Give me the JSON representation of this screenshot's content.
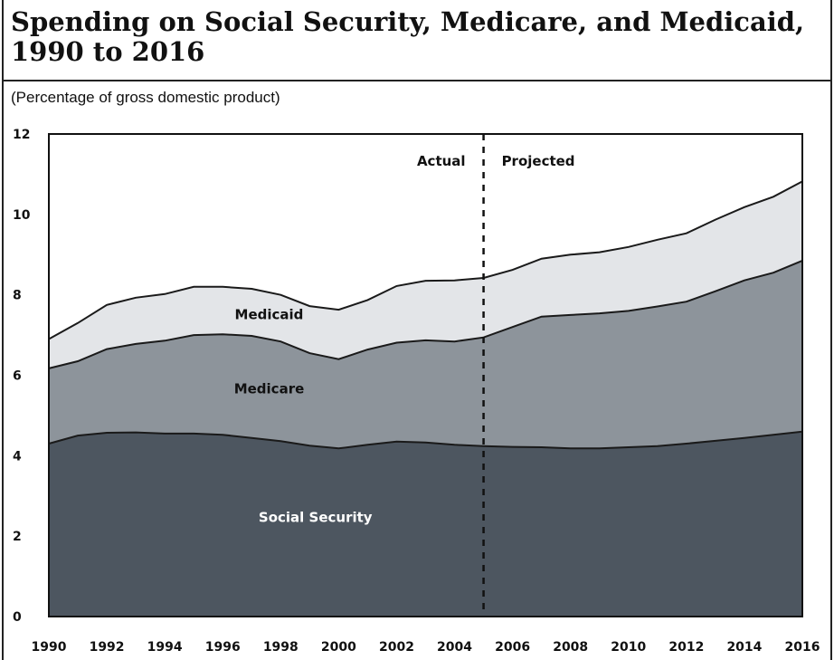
{
  "title": "Spending on Social Security, Medicare, and Medicaid, 1990 to 2016",
  "subtitle": "(Percentage of gross domestic product)",
  "chart_data": {
    "type": "area",
    "stacked": true,
    "title": "Spending on Social Security, Medicare, and Medicaid, 1990 to 2016",
    "ylabel": "(Percentage of gross domestic product)",
    "xlabel": "",
    "x": [
      1990,
      1991,
      1992,
      1993,
      1994,
      1995,
      1996,
      1997,
      1998,
      1999,
      2000,
      2001,
      2002,
      2003,
      2004,
      2005,
      2006,
      2007,
      2008,
      2009,
      2010,
      2011,
      2012,
      2013,
      2014,
      2015,
      2016
    ],
    "x_ticks": [
      "1990",
      "1992",
      "1994",
      "1996",
      "1998",
      "2000",
      "2002",
      "2004",
      "2006",
      "2008",
      "2010",
      "2012",
      "2014",
      "2016"
    ],
    "y_ticks": [
      "0",
      "2",
      "4",
      "6",
      "8",
      "10",
      "12"
    ],
    "ylim": [
      0,
      12
    ],
    "xlim": [
      1990,
      2016
    ],
    "grid": false,
    "series": [
      {
        "name": "Social Security",
        "color": "#4d5660",
        "values": [
          4.3,
          4.5,
          4.57,
          4.58,
          4.55,
          4.55,
          4.52,
          4.44,
          4.36,
          4.25,
          4.18,
          4.27,
          4.35,
          4.33,
          4.27,
          4.24,
          4.22,
          4.21,
          4.18,
          4.18,
          4.21,
          4.24,
          4.3,
          4.37,
          4.44,
          4.52,
          4.6
        ]
      },
      {
        "name": "Medicare",
        "color": "#8d949b",
        "values": [
          1.87,
          1.85,
          2.08,
          2.2,
          2.31,
          2.45,
          2.5,
          2.54,
          2.48,
          2.3,
          2.22,
          2.37,
          2.46,
          2.54,
          2.57,
          2.7,
          2.98,
          3.25,
          3.32,
          3.36,
          3.39,
          3.47,
          3.53,
          3.72,
          3.92,
          4.03,
          4.25
        ]
      },
      {
        "name": "Medicaid",
        "color": "#e3e5e8",
        "values": [
          0.73,
          0.95,
          1.1,
          1.15,
          1.16,
          1.2,
          1.18,
          1.17,
          1.16,
          1.17,
          1.23,
          1.23,
          1.41,
          1.48,
          1.52,
          1.48,
          1.42,
          1.44,
          1.5,
          1.52,
          1.59,
          1.66,
          1.7,
          1.78,
          1.82,
          1.89,
          1.97
        ]
      }
    ],
    "annotations": [
      {
        "text": "Actual",
        "year": 2005,
        "side": "left"
      },
      {
        "text": "Projected",
        "year": 2005,
        "side": "right"
      }
    ],
    "divider_year": 2005,
    "divider_style": "dashed"
  }
}
